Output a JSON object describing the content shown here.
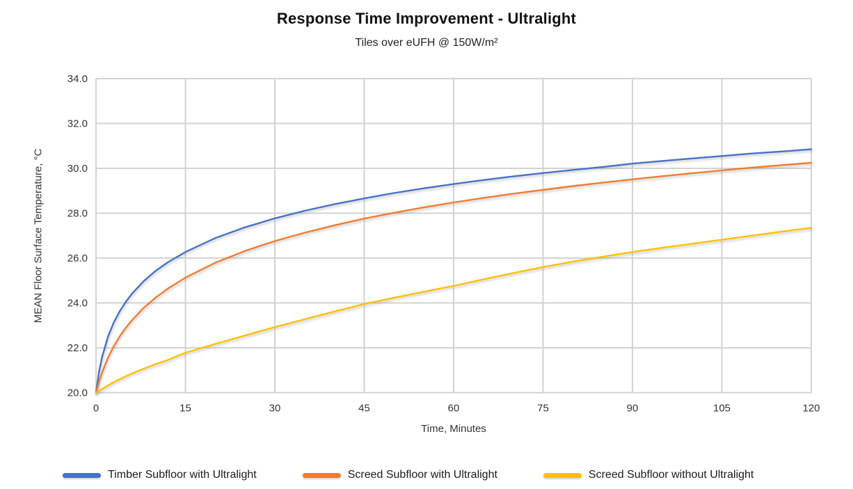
{
  "chart_data": {
    "type": "line",
    "title": "Response Time Improvement - Ultralight",
    "subtitle": "Tiles over eUFH @ 150W/m²",
    "xlabel": "Time, Minutes",
    "ylabel": "MEAN Floor Surface Temperature, °C",
    "xlim": [
      0,
      120
    ],
    "ylim": [
      20,
      34
    ],
    "x_tick_labels": [
      "0",
      "15",
      "30",
      "45",
      "60",
      "75",
      "90",
      "105",
      "120"
    ],
    "y_tick_labels": [
      "20.0",
      "22.0",
      "24.0",
      "26.0",
      "28.0",
      "30.0",
      "32.0",
      "34.0"
    ],
    "grid": true,
    "legend_position": "bottom",
    "grid_color": "#d2d2d2",
    "axis_text_color": "#333333",
    "background_color": "#ffffff",
    "x": [
      0,
      0.5,
      1,
      2,
      3,
      4,
      5,
      6,
      8,
      10,
      12,
      15,
      20,
      25,
      30,
      35,
      40,
      45,
      50,
      55,
      60,
      65,
      70,
      75,
      80,
      85,
      90,
      95,
      100,
      105,
      110,
      115,
      120
    ],
    "series": [
      {
        "name": "Timber Subfloor with Ultralight",
        "color": "#4472C4",
        "values": [
          20.0,
          20.92,
          21.57,
          22.49,
          23.14,
          23.64,
          24.05,
          24.4,
          24.97,
          25.43,
          25.8,
          26.27,
          26.89,
          27.37,
          27.77,
          28.11,
          28.4,
          28.66,
          28.9,
          29.11,
          29.3,
          29.48,
          29.64,
          29.79,
          29.93,
          30.06,
          30.21,
          30.33,
          30.44,
          30.55,
          30.66,
          30.75,
          30.85
        ]
      },
      {
        "name": "Screed Subfloor with Ultralight",
        "color": "#ED7D31",
        "values": [
          20.0,
          20.48,
          20.89,
          21.55,
          22.08,
          22.52,
          22.89,
          23.22,
          23.78,
          24.24,
          24.63,
          25.13,
          25.79,
          26.32,
          26.76,
          27.13,
          27.46,
          27.76,
          28.02,
          28.26,
          28.48,
          28.68,
          28.87,
          29.04,
          29.21,
          29.36,
          29.51,
          29.65,
          29.78,
          29.91,
          30.03,
          30.14,
          30.25
        ]
      },
      {
        "name": "Screed Subfloor without Ultralight",
        "color": "#FFC000",
        "values": [
          20.0,
          20.08,
          20.16,
          20.32,
          20.47,
          20.6,
          20.73,
          20.85,
          21.07,
          21.27,
          21.45,
          21.78,
          22.17,
          22.55,
          22.92,
          23.27,
          23.62,
          23.95,
          24.23,
          24.5,
          24.76,
          25.05,
          25.33,
          25.6,
          25.84,
          26.06,
          26.27,
          26.46,
          26.64,
          26.82,
          27.0,
          27.18,
          27.35
        ]
      }
    ]
  }
}
